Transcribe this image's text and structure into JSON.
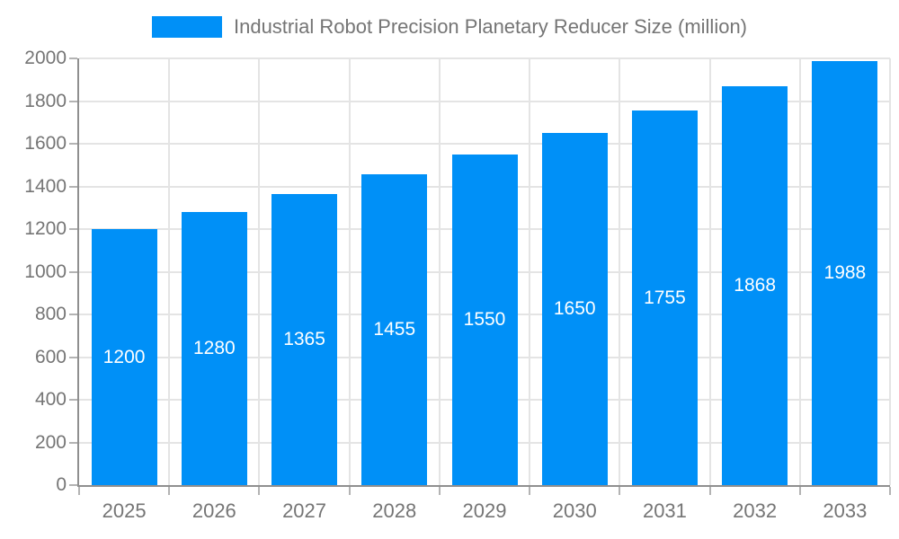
{
  "legend": {
    "label": "Industrial Robot Precision Planetary Reducer Size (million)",
    "swatch_color": "#0090f7"
  },
  "chart_data": {
    "type": "bar",
    "title": "Industrial Robot Precision Planetary Reducer Size (million)",
    "series_name": "Industrial Robot Precision Planetary Reducer Size (million)",
    "categories": [
      "2025",
      "2026",
      "2027",
      "2028",
      "2029",
      "2030",
      "2031",
      "2032",
      "2033"
    ],
    "values": [
      1200,
      1280,
      1365,
      1455,
      1550,
      1650,
      1755,
      1868,
      1988
    ],
    "xlabel": "",
    "ylabel": "",
    "ylim": [
      0,
      2000
    ],
    "y_ticks": [
      0,
      200,
      400,
      600,
      800,
      1000,
      1200,
      1400,
      1600,
      1800,
      2000
    ],
    "grid": true,
    "legend_position": "top",
    "value_labels": "inside-middle",
    "colors": {
      "bar": "#0090f7",
      "value_label": "#ffffff",
      "axis_text": "#757575",
      "grid_line": "#e4e4e4",
      "axis_line": "#8f8f8f",
      "tick_line": "#b3b3b3",
      "background": "#ffffff"
    }
  }
}
